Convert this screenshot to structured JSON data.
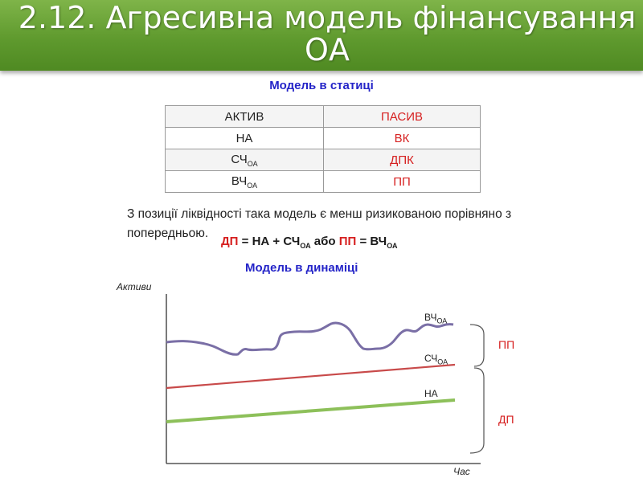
{
  "slide": {
    "title": "2.12. Агресивна модель фінансування ОА",
    "static_heading": "Модель в статиці",
    "table": {
      "rows": [
        {
          "asset": "АКТИВ",
          "liability": "ПАСИВ"
        },
        {
          "asset": "НА",
          "liability": "ВК"
        },
        {
          "asset": "СЧ",
          "asset_sub": "ОА",
          "liability": "ДПК"
        },
        {
          "asset": "ВЧ",
          "asset_sub": "ОА",
          "liability": "ПП"
        }
      ]
    },
    "note": "З позиції ліквідності така модель є менш ризикованою порівняно з попередньою.",
    "formula": {
      "dp": "ДП",
      "eq1": " = НА + СЧ",
      "sub1": "ОА",
      "or": " або ",
      "pp": "ПП",
      "eq2": " = ВЧ",
      "sub2": "ОА"
    },
    "dynamic_heading": "Модель в динаміці"
  },
  "chart_data": {
    "type": "line",
    "ylabel": "Активи",
    "xlabel": "Час",
    "series": [
      {
        "name": "ВЧ",
        "name_sub": "ОА",
        "color": "#7a6fa6"
      },
      {
        "name": "СЧ",
        "name_sub": "ОА",
        "color": "#c84a4a"
      },
      {
        "name": "НА",
        "color": "#8dc05a"
      }
    ],
    "braces": [
      "ПП",
      "ДП"
    ],
    "axis_color": "#333333"
  }
}
